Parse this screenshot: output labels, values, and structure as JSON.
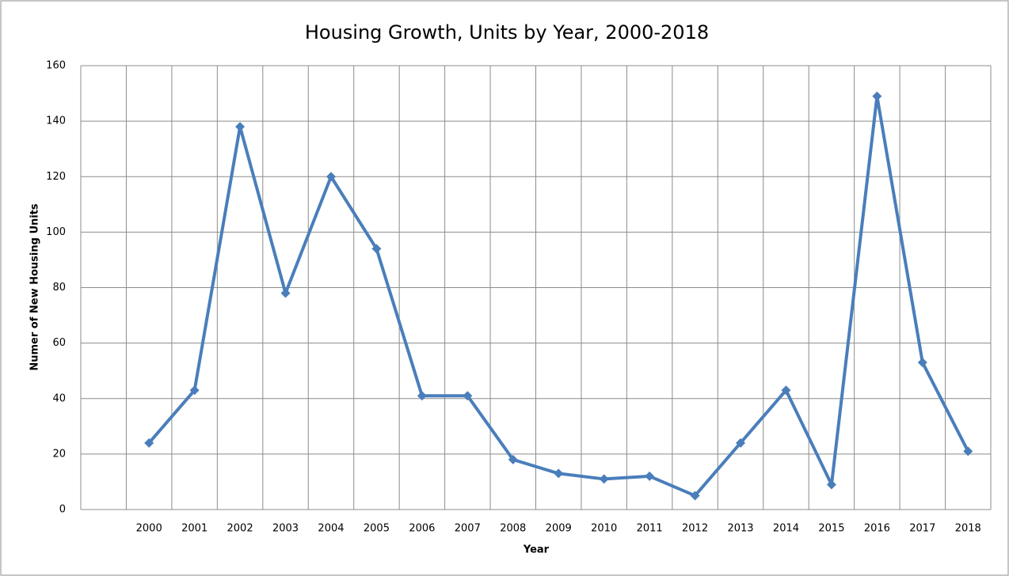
{
  "chart_data": {
    "type": "line",
    "title": "Housing Growth, Units by Year, 2000-2018",
    "x_label": "Year",
    "y_label": "Numer of New Housing Units",
    "categories": [
      null,
      "2000",
      "2001",
      "2002",
      "2003",
      "2004",
      "2005",
      "2006",
      "2007",
      "2008",
      "2009",
      "2010",
      "2011",
      "2012",
      "2013",
      "2014",
      "2015",
      "2016",
      "2017",
      "2018"
    ],
    "series": [
      {
        "name": "Housing Units",
        "color": "#4a7ebb",
        "values": [
          null,
          24,
          43,
          138,
          78,
          120,
          94,
          41,
          41,
          18,
          13,
          11,
          12,
          5,
          24,
          43,
          9,
          149,
          53,
          21
        ]
      }
    ],
    "ylim": [
      0,
      160
    ],
    "yticks": [
      0,
      20,
      40,
      60,
      80,
      100,
      120,
      140,
      160
    ],
    "grid": true
  }
}
